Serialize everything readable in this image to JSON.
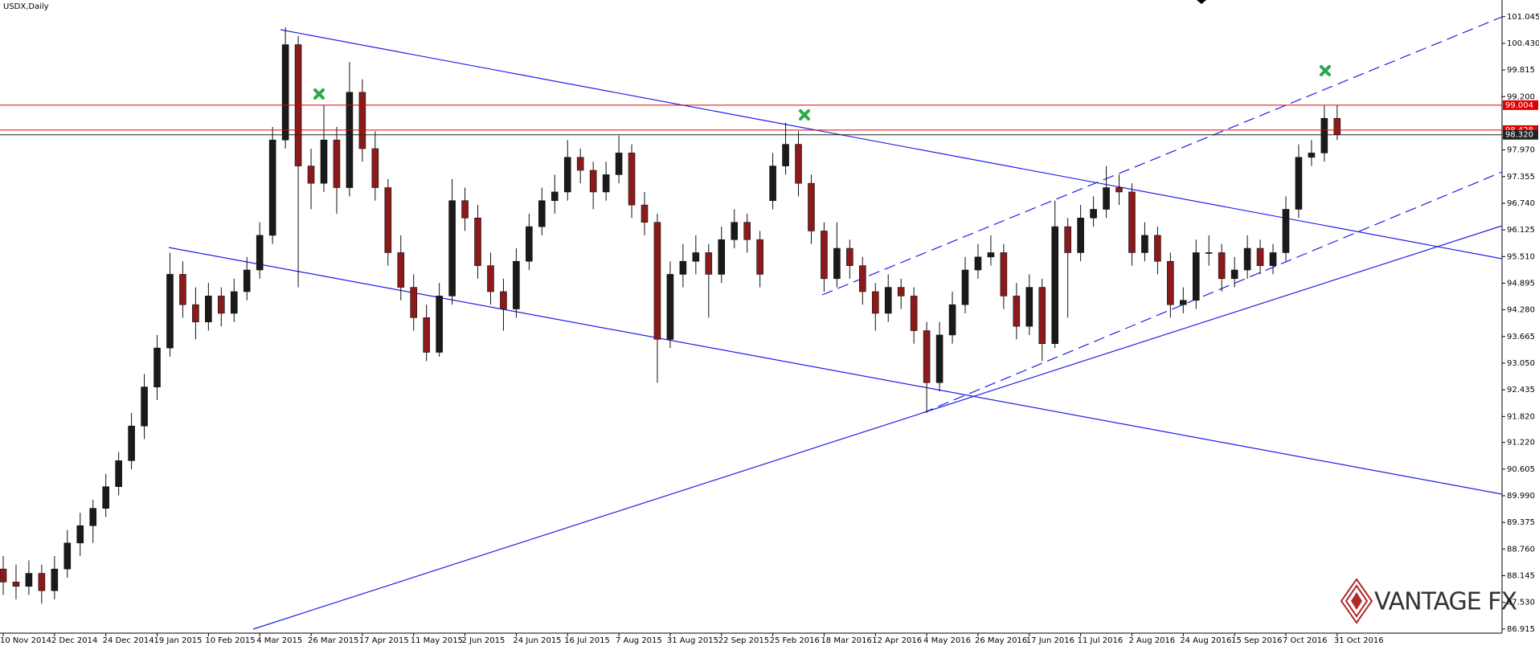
{
  "chart_data": {
    "type": "candlestick",
    "title": "USDX,Daily",
    "watermark": "VANTAGE FX",
    "categories": [
      "10 Nov 2014",
      null,
      null,
      null,
      "2 Dec 2014",
      null,
      null,
      null,
      "24 Dec 2014",
      null,
      null,
      null,
      "19 Jan 2015",
      null,
      null,
      null,
      "10 Feb 2015",
      null,
      null,
      null,
      "4 Mar 2015",
      null,
      null,
      null,
      "26 Mar 2015",
      null,
      null,
      null,
      "17 Apr 2015",
      null,
      null,
      null,
      "11 May 2015",
      null,
      null,
      null,
      "2 Jun 2015",
      null,
      null,
      null,
      "24 Jun 2015",
      null,
      null,
      null,
      "16 Jul 2015",
      null,
      null,
      null,
      "7 Aug 2015",
      null,
      null,
      null,
      "31 Aug 2015",
      null,
      null,
      null,
      "22 Sep 2015",
      null,
      null,
      null,
      "25 Feb 2016",
      null,
      null,
      null,
      "18 Mar 2016",
      null,
      null,
      null,
      "12 Apr 2016",
      null,
      null,
      null,
      "4 May 2016",
      null,
      null,
      null,
      "26 May 2016",
      null,
      null,
      null,
      "17 Jun 2016",
      null,
      null,
      null,
      "11 Jul 2016",
      null,
      null,
      null,
      "2 Aug 2016",
      null,
      null,
      null,
      "24 Aug 2016",
      null,
      null,
      null,
      "15 Sep 2016",
      null,
      null,
      null,
      "7 Oct 2016",
      null,
      null,
      null,
      "31 Oct 2016"
    ],
    "open": [
      88.3,
      88.0,
      87.9,
      88.2,
      87.8,
      88.3,
      88.9,
      89.3,
      89.7,
      90.2,
      90.8,
      91.6,
      92.5,
      93.4,
      95.1,
      94.4,
      94.0,
      94.6,
      94.2,
      94.7,
      95.2,
      96.0,
      98.2,
      100.4,
      97.6,
      97.2,
      98.2,
      97.1,
      99.3,
      98.0,
      97.1,
      95.6,
      94.8,
      94.1,
      93.3,
      94.6,
      96.8,
      96.4,
      95.3,
      94.7,
      94.3,
      95.4,
      96.2,
      96.8,
      97.0,
      97.8,
      97.5,
      97.0,
      97.4,
      97.9,
      96.7,
      96.3,
      93.6,
      95.1,
      95.4,
      95.6,
      95.1,
      95.9,
      96.3,
      95.9,
      96.8,
      97.6,
      98.1,
      97.2,
      96.1,
      95.0,
      95.7,
      95.3,
      94.7,
      94.2,
      94.8,
      94.6,
      93.8,
      92.6,
      93.7,
      94.4,
      95.2,
      95.5,
      95.6,
      94.6,
      93.9,
      94.8,
      93.5,
      96.2,
      95.6,
      96.4,
      96.6,
      97.1,
      97.0,
      95.6,
      96.0,
      95.4,
      94.4,
      94.5,
      95.6,
      95.6,
      95.0,
      95.2,
      95.7,
      95.3,
      95.6,
      96.6,
      97.8,
      97.9,
      98.7
    ],
    "high": [
      88.6,
      88.4,
      88.5,
      88.4,
      88.6,
      89.2,
      89.6,
      89.9,
      90.5,
      91.0,
      91.9,
      92.8,
      93.7,
      95.6,
      95.4,
      94.8,
      94.9,
      94.8,
      95.0,
      95.5,
      96.3,
      98.5,
      100.8,
      100.6,
      98.0,
      99.0,
      98.5,
      100.0,
      99.6,
      98.4,
      97.3,
      96.0,
      95.1,
      94.4,
      94.9,
      97.3,
      97.1,
      96.7,
      95.6,
      95.0,
      95.7,
      96.5,
      97.1,
      97.4,
      98.2,
      98.0,
      97.7,
      97.7,
      98.3,
      98.1,
      97.0,
      96.5,
      95.4,
      95.8,
      96.0,
      95.8,
      96.2,
      96.6,
      96.5,
      96.1,
      97.9,
      98.6,
      98.4,
      97.4,
      96.3,
      96.3,
      95.9,
      95.5,
      94.9,
      95.1,
      95.0,
      94.8,
      94.0,
      94.0,
      94.7,
      95.5,
      95.8,
      96.0,
      95.8,
      94.9,
      95.1,
      95.0,
      96.8,
      96.4,
      96.7,
      96.9,
      97.6,
      97.4,
      97.2,
      96.3,
      96.2,
      95.6,
      94.8,
      95.9,
      96.0,
      95.8,
      95.5,
      96.0,
      95.9,
      95.8,
      96.9,
      98.1,
      98.2,
      99.0,
      99.0
    ],
    "low": [
      87.7,
      87.6,
      87.7,
      87.5,
      87.6,
      88.1,
      88.6,
      88.9,
      89.5,
      90.0,
      90.6,
      91.3,
      92.2,
      93.2,
      94.1,
      93.6,
      93.8,
      93.9,
      94.0,
      94.5,
      95.0,
      95.8,
      98.0,
      94.8,
      96.6,
      97.0,
      96.5,
      96.9,
      97.7,
      96.8,
      95.3,
      94.5,
      93.8,
      93.1,
      93.2,
      94.4,
      96.1,
      95.0,
      94.4,
      93.8,
      94.1,
      95.2,
      96.0,
      96.5,
      96.8,
      97.2,
      96.6,
      96.8,
      97.2,
      96.4,
      96.0,
      92.6,
      93.4,
      94.8,
      95.1,
      94.1,
      94.9,
      95.7,
      95.6,
      94.8,
      96.6,
      97.4,
      96.9,
      95.8,
      94.7,
      94.8,
      95.0,
      94.4,
      93.8,
      94.0,
      94.3,
      93.5,
      91.9,
      92.4,
      93.5,
      94.2,
      95.0,
      95.3,
      94.3,
      93.6,
      93.7,
      93.1,
      93.4,
      94.1,
      95.4,
      96.2,
      96.4,
      96.7,
      95.3,
      95.4,
      95.1,
      94.1,
      94.2,
      94.3,
      95.3,
      94.7,
      94.8,
      95.0,
      95.1,
      95.1,
      95.4,
      96.4,
      97.6,
      97.7,
      98.2
    ],
    "close": [
      88.0,
      87.9,
      88.2,
      87.8,
      88.3,
      88.9,
      89.3,
      89.7,
      90.2,
      90.8,
      91.6,
      92.5,
      93.4,
      95.1,
      94.4,
      94.0,
      94.6,
      94.2,
      94.7,
      95.2,
      96.0,
      98.2,
      100.4,
      97.6,
      97.2,
      98.2,
      97.1,
      99.3,
      98.0,
      97.1,
      95.6,
      94.8,
      94.1,
      93.3,
      94.6,
      96.8,
      96.4,
      95.3,
      94.7,
      94.3,
      95.4,
      96.2,
      96.8,
      97.0,
      97.8,
      97.5,
      97.0,
      97.4,
      97.9,
      96.7,
      96.3,
      93.6,
      95.1,
      95.4,
      95.6,
      95.1,
      95.9,
      96.3,
      95.9,
      95.1,
      97.6,
      98.1,
      97.2,
      96.1,
      95.0,
      95.7,
      95.3,
      94.7,
      94.2,
      94.8,
      94.6,
      93.8,
      92.6,
      93.7,
      94.4,
      95.2,
      95.5,
      95.6,
      94.6,
      93.9,
      94.8,
      93.5,
      96.2,
      95.6,
      96.4,
      96.6,
      97.1,
      97.0,
      95.6,
      96.0,
      95.4,
      94.4,
      94.5,
      95.6,
      95.6,
      95.0,
      95.2,
      95.7,
      95.3,
      95.6,
      96.6,
      97.8,
      97.9,
      98.7,
      98.32
    ],
    "up_color": "#1a1a1a",
    "down_color": "#8b1a1a",
    "ylim": [
      86.82,
      101.43
    ],
    "yticks": [
      101.045,
      {
        "value": 100.43,
        "label": "100.430"
      },
      99.815,
      {
        "value": 99.2,
        "label": "99.200"
      },
      {
        "value": 97.97,
        "label": "97.970"
      },
      97.355,
      {
        "value": 96.74,
        "label": "96.740"
      },
      96.125,
      {
        "value": 95.51,
        "label": "95.510"
      },
      94.895,
      {
        "value": 94.28,
        "label": "94.280"
      },
      93.665,
      {
        "value": 93.05,
        "label": "93.050"
      },
      92.435,
      {
        "value": 91.82,
        "label": "91.820"
      },
      {
        "value": 91.22,
        "label": "91.220"
      },
      90.605,
      {
        "value": 89.99,
        "label": "89.990"
      },
      89.375,
      {
        "value": 88.76,
        "label": "88.760"
      },
      88.145,
      {
        "value": 87.53,
        "label": "87.530"
      },
      86.915
    ],
    "price_tags": [
      {
        "value": 99.004,
        "color": "#e00000"
      },
      {
        "value": 98.428,
        "color": "#e00000"
      },
      {
        "value": 98.32,
        "label": "98.320",
        "color": "#222222"
      }
    ]
  }
}
